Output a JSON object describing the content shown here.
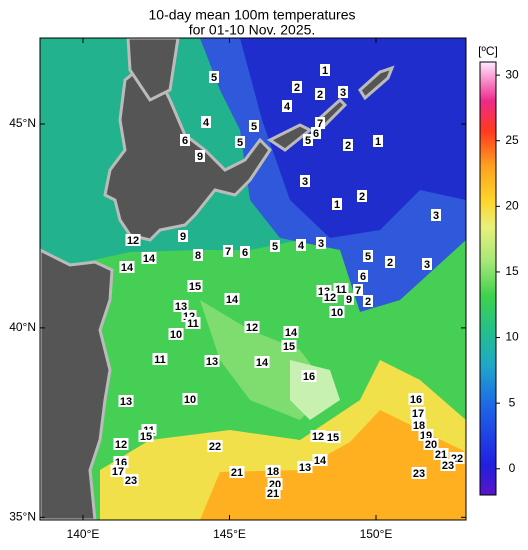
{
  "title_lines": [
    "10-day mean 100m temperatures",
    "for 01-10 Nov. 2025."
  ],
  "lon_ticks": [
    {
      "value": 140,
      "label": "140°E"
    },
    {
      "value": 145,
      "label": "145°E"
    },
    {
      "value": 150,
      "label": "150°E"
    }
  ],
  "lat_ticks": [
    {
      "value": 35,
      "label": "35°N"
    },
    {
      "value": 40,
      "label": "40°N"
    },
    {
      "value": 45,
      "label": "45°N"
    }
  ],
  "colorbar": {
    "unit": "[ºC]",
    "range": [
      -2,
      31
    ],
    "ticks": [
      0,
      5,
      10,
      15,
      20,
      25,
      30
    ]
  },
  "contour_labels": [
    1,
    5,
    2,
    2,
    3,
    4,
    4,
    5,
    7,
    6,
    5,
    6,
    5,
    2,
    1,
    9,
    3,
    2,
    1,
    3,
    12,
    9,
    14,
    8,
    7,
    6,
    5,
    4,
    3,
    5,
    2,
    3,
    14,
    6,
    15,
    14,
    13,
    11,
    7,
    12,
    9,
    2,
    10,
    13,
    12,
    11,
    10,
    12,
    14,
    15,
    11,
    13,
    14,
    16,
    13,
    10,
    16,
    17,
    18,
    19,
    11,
    15,
    12,
    15,
    12,
    22,
    20,
    21,
    22,
    23,
    16,
    17,
    23,
    21,
    13,
    14,
    18,
    20,
    21,
    23
  ]
}
